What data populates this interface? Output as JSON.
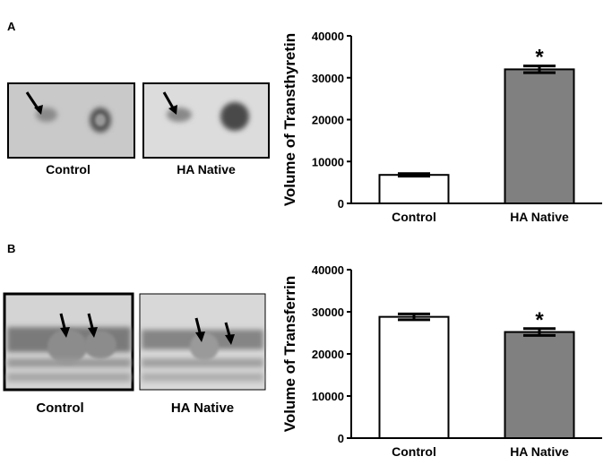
{
  "panels": [
    {
      "label": "A",
      "captions": [
        "Control",
        "HA Native"
      ]
    },
    {
      "label": "B",
      "captions": [
        "Control",
        "HA Native"
      ]
    }
  ],
  "chart_data": [
    {
      "type": "bar",
      "ylabel": "Volume of Transthyretin",
      "categories": [
        "Control",
        "HA Native"
      ],
      "values": [
        6800,
        32000
      ],
      "errors": [
        300,
        800
      ],
      "colors": [
        "#ffffff",
        "#808080"
      ],
      "annotation": "*",
      "ylim": [
        0,
        40000
      ],
      "yticks": [
        0,
        10000,
        20000,
        30000,
        40000
      ]
    },
    {
      "type": "bar",
      "ylabel": "Volume of Transferrin",
      "categories": [
        "Control",
        "HA Native"
      ],
      "values": [
        28800,
        25200
      ],
      "errors": [
        700,
        800
      ],
      "colors": [
        "#ffffff",
        "#808080"
      ],
      "annotation": "*",
      "ylim": [
        0,
        40000
      ],
      "yticks": [
        0,
        10000,
        20000,
        30000,
        40000
      ]
    }
  ]
}
